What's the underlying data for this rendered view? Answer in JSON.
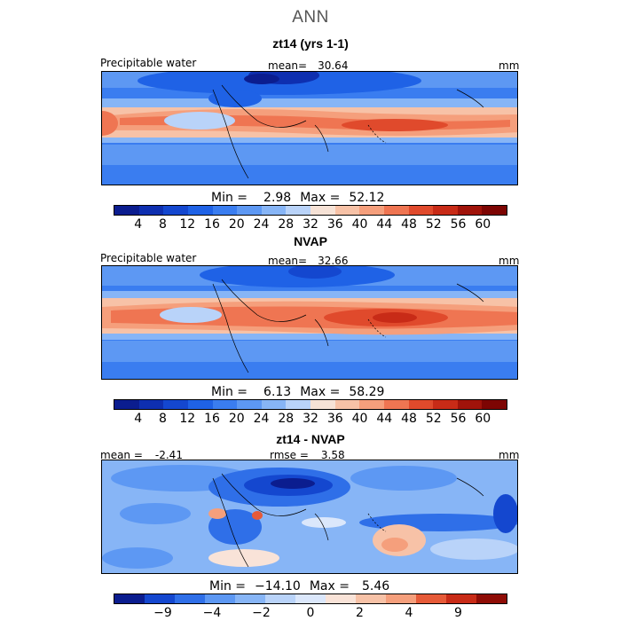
{
  "season": "ANN",
  "colors": {
    "abs_scale": [
      "#0b1d8f",
      "#0e2fb0",
      "#1447cf",
      "#1f62e6",
      "#3a7df0",
      "#5d98f3",
      "#87b5f6",
      "#b9d3f9",
      "#f6e2d6",
      "#f7c2a7",
      "#f59f7c",
      "#ef7552",
      "#e04a2c",
      "#c82b17",
      "#a0130a",
      "#7d0503"
    ],
    "diff_scale": [
      "#0b1d8f",
      "#1447cf",
      "#2f6fe8",
      "#5d98f3",
      "#87b5f6",
      "#b9d3f9",
      "#dbe7fb",
      "#f9e3d8",
      "#f7c2a7",
      "#f59f7c",
      "#e65a38",
      "#c82b17",
      "#8f0c06"
    ]
  },
  "panels": [
    {
      "title": "zt14 (yrs 1-1)",
      "field": "Precipitable water",
      "mean_label": "mean=",
      "mean": "30.64",
      "units": "mm",
      "min_label": "Min =",
      "min": "2.98",
      "max_label": "Max =",
      "max": "52.12"
    },
    {
      "title": "NVAP",
      "field": "Precipitable water",
      "mean_label": "mean=",
      "mean": "32.66",
      "units": "mm",
      "min_label": "Min =",
      "min": "6.13",
      "max_label": "Max =",
      "max": "58.29"
    },
    {
      "title": "zt14 - NVAP",
      "mean_label": "mean =",
      "mean": "-2.41",
      "rmse_label": "rmse =",
      "rmse": "3.58",
      "units": "mm",
      "min_label": "Min =",
      "min": "−14.10",
      "max_label": "Max =",
      "max": "5.46"
    }
  ],
  "abs_ticks": [
    "4",
    "8",
    "12",
    "16",
    "20",
    "24",
    "28",
    "32",
    "36",
    "40",
    "44",
    "48",
    "52",
    "56",
    "60"
  ],
  "diff_ticks": [
    "−9",
    "−4",
    "−2",
    "0",
    "2",
    "4",
    "9"
  ]
}
